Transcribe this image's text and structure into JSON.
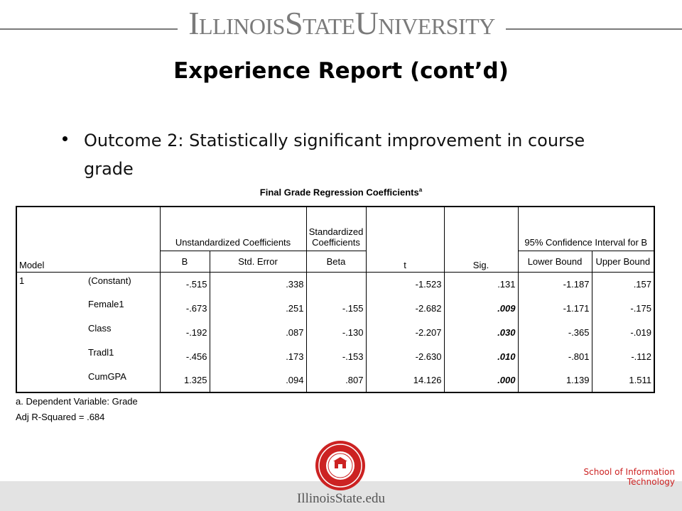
{
  "header": {
    "brand": "IllinoisStateUniversity"
  },
  "slide": {
    "title": "Experience Report (cont’d)",
    "bullet": "Outcome 2: Statistically significant improvement in course grade"
  },
  "table": {
    "title": "Final Grade Regression Coefficients",
    "title_sup": "a",
    "headers": {
      "model": "Model",
      "unstd": "Unstandardized Coefficients",
      "std": "Standardized Coefficients",
      "ci": "95% Confidence Interval for B",
      "b": "B",
      "se": "Std. Error",
      "beta": "Beta",
      "t": "t",
      "sig": "Sig.",
      "lower": "Lower Bound",
      "upper": "Upper Bound"
    },
    "model_number": "1",
    "rows": [
      {
        "label": "(Constant)",
        "b": "-.515",
        "se": ".338",
        "beta": "",
        "t": "-1.523",
        "sig": ".131",
        "lower": "-1.187",
        "upper": ".157"
      },
      {
        "label": "Female1",
        "b": "-.673",
        "se": ".251",
        "beta": "-.155",
        "t": "-2.682",
        "sig": ".009",
        "lower": "-1.171",
        "upper": "-.175"
      },
      {
        "label": "Class",
        "b": "-.192",
        "se": ".087",
        "beta": "-.130",
        "t": "-2.207",
        "sig": ".030",
        "lower": "-.365",
        "upper": "-.019"
      },
      {
        "label": "Tradl1",
        "b": "-.456",
        "se": ".173",
        "beta": "-.153",
        "t": "-2.630",
        "sig": ".010",
        "lower": "-.801",
        "upper": "-.112"
      },
      {
        "label": "CumGPA",
        "b": "1.325",
        "se": ".094",
        "beta": ".807",
        "t": "14.126",
        "sig": ".000",
        "lower": "1.139",
        "upper": "1.511"
      }
    ],
    "note": "a. Dependent Variable: Grade",
    "adj_r2_label": "Adj R-Squared = ",
    "adj_r2_value": ".684"
  },
  "footer": {
    "school": "School of Information Technology",
    "url": "IllinoisState.edu"
  },
  "colors": {
    "seal_red": "#cc2222",
    "school_text": "#cc2222",
    "brand_gray": "#7a7a7a"
  },
  "icons": {
    "seal": "university-seal-icon"
  }
}
